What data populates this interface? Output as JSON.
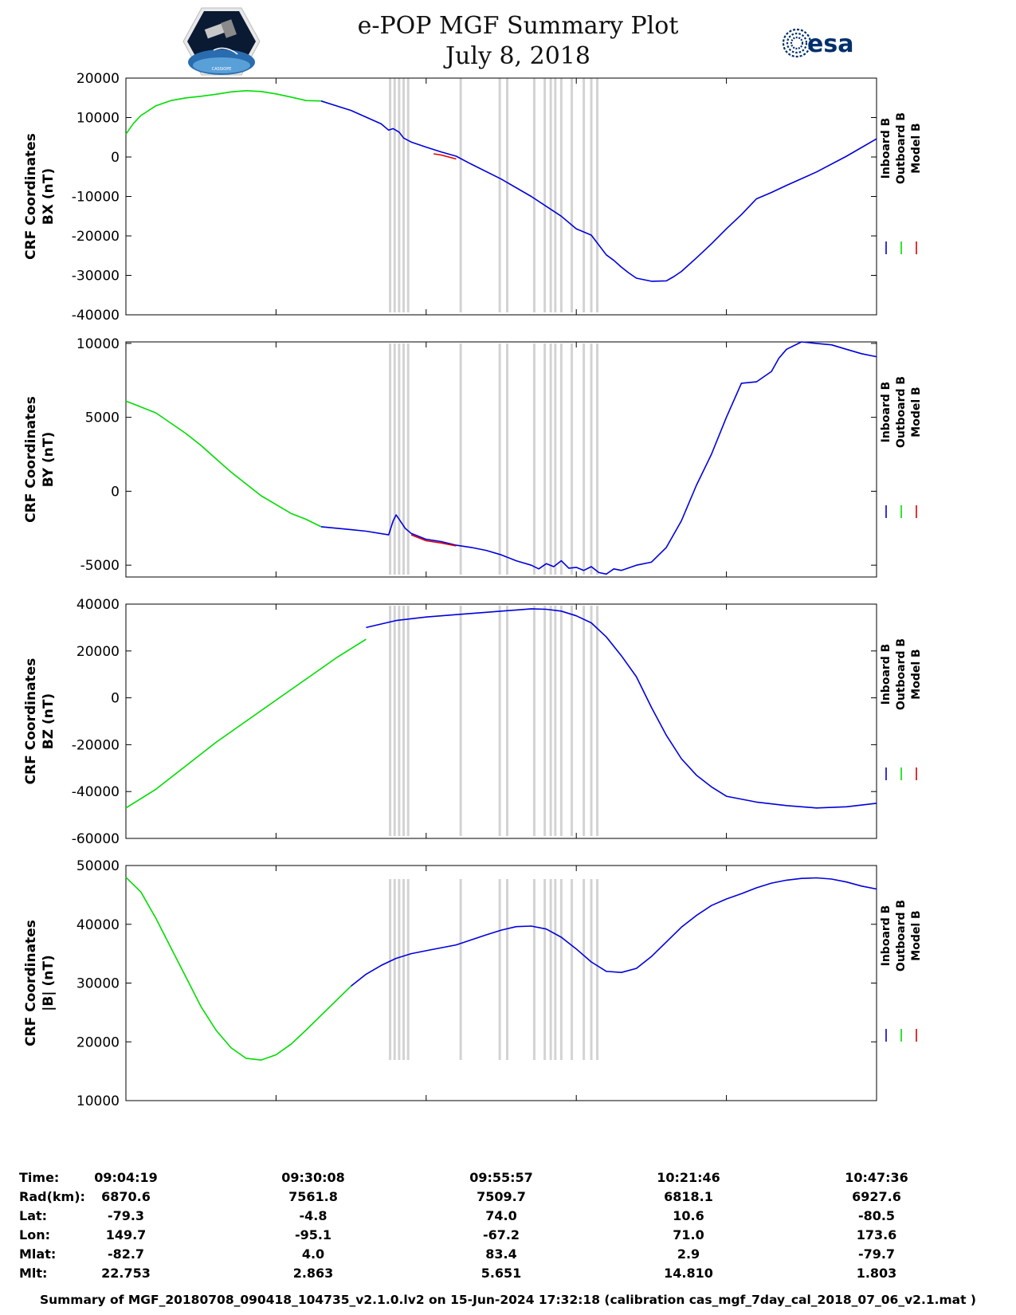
{
  "header": {
    "title_line1": "e-POP MGF Summary Plot",
    "title_line2": "July 8, 2018",
    "left_logo_text": "CASSIOPE",
    "right_logo_text": "esa"
  },
  "legend": [
    "Inboard B",
    "Outboard B",
    "Model B"
  ],
  "colors": {
    "inboard": "#0000dd",
    "outboard": "#00dd00",
    "model": "#dd0000",
    "gap": "#d3d3d3"
  },
  "chart_data": [
    {
      "type": "line",
      "ylabel_line1": "CRF Coordinates",
      "ylabel_line2": "BX (nT)",
      "ylim": [
        -40000,
        20000
      ],
      "yticks": [
        20000,
        10000,
        0,
        -10000,
        -20000,
        -30000,
        -40000
      ],
      "ytick_labels": [
        "20000",
        "10000",
        "0",
        "-10000",
        "-20000",
        "-30000",
        "-40000"
      ],
      "series": [
        {
          "name": "Outboard B",
          "x": [
            0,
            0.05,
            0.1,
            0.2,
            0.3,
            0.4,
            0.5,
            0.6,
            0.7,
            0.8,
            0.9,
            1.0,
            1.1,
            1.2,
            1.3
          ],
          "values": [
            5800,
            8500,
            10500,
            13000,
            14300,
            15000,
            15400,
            15900,
            16500,
            16800,
            16600,
            16000,
            15200,
            14300,
            14200
          ]
        },
        {
          "name": "Inboard B",
          "x": [
            1.3,
            1.5,
            1.7,
            1.75,
            1.78,
            1.82,
            1.85,
            1.9,
            2.0,
            2.1,
            2.2,
            2.3,
            2.5,
            2.7,
            2.9,
            3.0,
            3.1,
            3.2,
            3.25,
            3.3,
            3.35,
            3.4,
            3.5,
            3.6,
            3.65,
            3.7,
            3.8,
            3.9,
            4.0,
            4.1,
            4.2,
            4.3,
            4.4,
            4.6,
            4.8,
            5.0
          ],
          "values": [
            14200,
            11800,
            8400,
            6800,
            7200,
            6300,
            4800,
            3800,
            2500,
            1300,
            200,
            -1800,
            -5600,
            -10000,
            -15000,
            -18200,
            -19800,
            -24800,
            -26200,
            -27900,
            -29400,
            -30700,
            -31500,
            -31400,
            -30300,
            -29000,
            -25600,
            -22000,
            -18200,
            -14600,
            -10600,
            -9000,
            -7200,
            -3800,
            200,
            4600
          ]
        },
        {
          "name": "Model B",
          "x": [
            2.05,
            2.1,
            2.15,
            2.2
          ],
          "values": [
            800,
            500,
            0,
            -500
          ]
        }
      ]
    },
    {
      "type": "line",
      "ylabel_line1": "CRF Coordinates",
      "ylabel_line2": "BY (nT)",
      "ylim": [
        -5800,
        10100
      ],
      "yticks": [
        10000,
        5000,
        0,
        -5000
      ],
      "ytick_labels": [
        "10000",
        "5000",
        "0",
        "-5000"
      ],
      "series": [
        {
          "name": "Outboard B",
          "x": [
            0,
            0.1,
            0.2,
            0.3,
            0.4,
            0.5,
            0.6,
            0.7,
            0.8,
            0.9,
            1.0,
            1.1,
            1.2,
            1.3
          ],
          "values": [
            6100,
            5700,
            5300,
            4600,
            3900,
            3100,
            2200,
            1300,
            500,
            -300,
            -900,
            -1500,
            -1900,
            -2400
          ]
        },
        {
          "name": "Inboard B",
          "x": [
            1.3,
            1.5,
            1.6,
            1.75,
            1.78,
            1.8,
            1.82,
            1.86,
            1.9,
            2.0,
            2.1,
            2.2,
            2.3,
            2.4,
            2.5,
            2.6,
            2.7,
            2.75,
            2.8,
            2.85,
            2.9,
            2.95,
            3.0,
            3.05,
            3.1,
            3.15,
            3.2,
            3.25,
            3.3,
            3.4,
            3.5,
            3.6,
            3.7,
            3.8,
            3.9,
            4.0,
            4.1,
            4.2,
            4.3,
            4.35,
            4.4,
            4.5,
            4.6,
            4.7,
            4.8,
            4.9,
            5.0
          ],
          "values": [
            -2400,
            -2600,
            -2700,
            -2950,
            -2000,
            -1600,
            -1900,
            -2500,
            -2850,
            -3250,
            -3400,
            -3650,
            -3800,
            -4000,
            -4300,
            -4700,
            -5000,
            -5250,
            -4900,
            -5100,
            -4700,
            -5200,
            -5150,
            -5350,
            -5100,
            -5500,
            -5600,
            -5250,
            -5350,
            -5000,
            -4800,
            -3800,
            -2000,
            400,
            2500,
            5000,
            7300,
            7400,
            8100,
            9000,
            9600,
            10100,
            10000,
            9900,
            9600,
            9300,
            9100
          ]
        },
        {
          "name": "Model B",
          "x": [
            1.9,
            2.0,
            2.1,
            2.2
          ],
          "values": [
            -2950,
            -3350,
            -3500,
            -3700
          ]
        }
      ]
    },
    {
      "type": "line",
      "ylabel_line1": "CRF Coordinates",
      "ylabel_line2": "BZ (nT)",
      "ylim": [
        -60000,
        40000
      ],
      "yticks": [
        40000,
        20000,
        0,
        -20000,
        -40000,
        -60000
      ],
      "ytick_labels": [
        "40000",
        "20000",
        "0",
        "-20000",
        "-40000",
        "-60000"
      ],
      "series": [
        {
          "name": "Outboard B",
          "x": [
            0,
            0.2,
            0.4,
            0.6,
            0.8,
            1.0,
            1.2,
            1.4,
            1.6
          ],
          "values": [
            -47000,
            -39000,
            -29000,
            -19000,
            -10000,
            -1000,
            8000,
            17000,
            25000
          ]
        },
        {
          "name": "Inboard B",
          "x": [
            1.6,
            1.8,
            2.0,
            2.2,
            2.4,
            2.5,
            2.6,
            2.7,
            2.8,
            2.9,
            3.0,
            3.1,
            3.2,
            3.3,
            3.4,
            3.5,
            3.6,
            3.7,
            3.8,
            3.9,
            4.0,
            4.2,
            4.4,
            4.6,
            4.8,
            5.0
          ],
          "values": [
            30000,
            33000,
            34500,
            35500,
            36500,
            37000,
            37500,
            38000,
            37800,
            37000,
            35000,
            32000,
            26000,
            18000,
            9000,
            -4000,
            -16000,
            -26000,
            -33000,
            -38000,
            -42000,
            -44500,
            -46000,
            -47000,
            -46500,
            -45000
          ]
        },
        {
          "name": "Model B",
          "x": [],
          "values": []
        }
      ]
    },
    {
      "type": "line",
      "ylabel_line1": "CRF Coordinates",
      "ylabel_line2": "|B| (nT)",
      "ylim": [
        10000,
        50000
      ],
      "yticks": [
        50000,
        40000,
        30000,
        20000,
        10000
      ],
      "ytick_labels": [
        "50000",
        "40000",
        "30000",
        "20000",
        "10000"
      ],
      "series": [
        {
          "name": "Outboard B",
          "x": [
            0,
            0.1,
            0.2,
            0.3,
            0.4,
            0.5,
            0.6,
            0.7,
            0.8,
            0.9,
            1.0,
            1.1,
            1.2,
            1.3,
            1.4,
            1.5
          ],
          "values": [
            48000,
            45500,
            41000,
            36000,
            31000,
            26000,
            22000,
            19000,
            17200,
            16900,
            17800,
            19600,
            22000,
            24500,
            27000,
            29500
          ]
        },
        {
          "name": "Inboard B",
          "x": [
            1.5,
            1.6,
            1.7,
            1.8,
            1.9,
            2.0,
            2.2,
            2.4,
            2.5,
            2.6,
            2.7,
            2.8,
            2.9,
            3.0,
            3.1,
            3.2,
            3.3,
            3.4,
            3.5,
            3.6,
            3.7,
            3.8,
            3.9,
            4.0,
            4.1,
            4.2,
            4.3,
            4.4,
            4.5,
            4.6,
            4.7,
            4.8,
            4.9,
            5.0
          ],
          "values": [
            29500,
            31500,
            33000,
            34200,
            35000,
            35500,
            36500,
            38200,
            39000,
            39600,
            39700,
            39200,
            37800,
            35800,
            33600,
            32000,
            31800,
            32500,
            34500,
            37000,
            39500,
            41500,
            43200,
            44300,
            45200,
            46200,
            47000,
            47500,
            47800,
            47900,
            47700,
            47200,
            46500,
            46000
          ]
        },
        {
          "name": "Model B",
          "x": [],
          "values": []
        }
      ]
    }
  ],
  "gap_bands": [
    1.76,
    1.79,
    1.82,
    1.85,
    1.88,
    2.23,
    2.49,
    2.54,
    2.72,
    2.79,
    2.83,
    2.86,
    2.9,
    2.97,
    3.05,
    3.1,
    3.14
  ],
  "x_axis": {
    "xlim": [
      0,
      5
    ],
    "tick_positions": [
      0,
      1,
      2,
      3,
      4,
      5
    ]
  },
  "info_table": {
    "labels": [
      "Time:",
      "Rad(km):",
      "Lat:",
      "Lon:",
      "Mlat:",
      "Mlt:"
    ],
    "columns": [
      [
        "09:04:19",
        "6870.6",
        "-79.3",
        "149.7",
        "-82.7",
        "22.753"
      ],
      [
        "09:30:08",
        "7561.8",
        "-4.8",
        "-95.1",
        "4.0",
        "2.863"
      ],
      [
        "09:55:57",
        "7509.7",
        "74.0",
        "-67.2",
        "83.4",
        "5.651"
      ],
      [
        "10:21:46",
        "6818.1",
        "10.6",
        "71.0",
        "2.9",
        "14.810"
      ],
      [
        "10:47:36",
        "6927.6",
        "-80.5",
        "173.6",
        "-79.7",
        "1.803"
      ]
    ]
  },
  "footer": "Summary of MGF_20180708_090418_104735_v2.1.0.lv2 on 15-Jun-2024 17:32:18 (calibration cas_mgf_7day_cal_2018_07_06_v2.1.mat )"
}
